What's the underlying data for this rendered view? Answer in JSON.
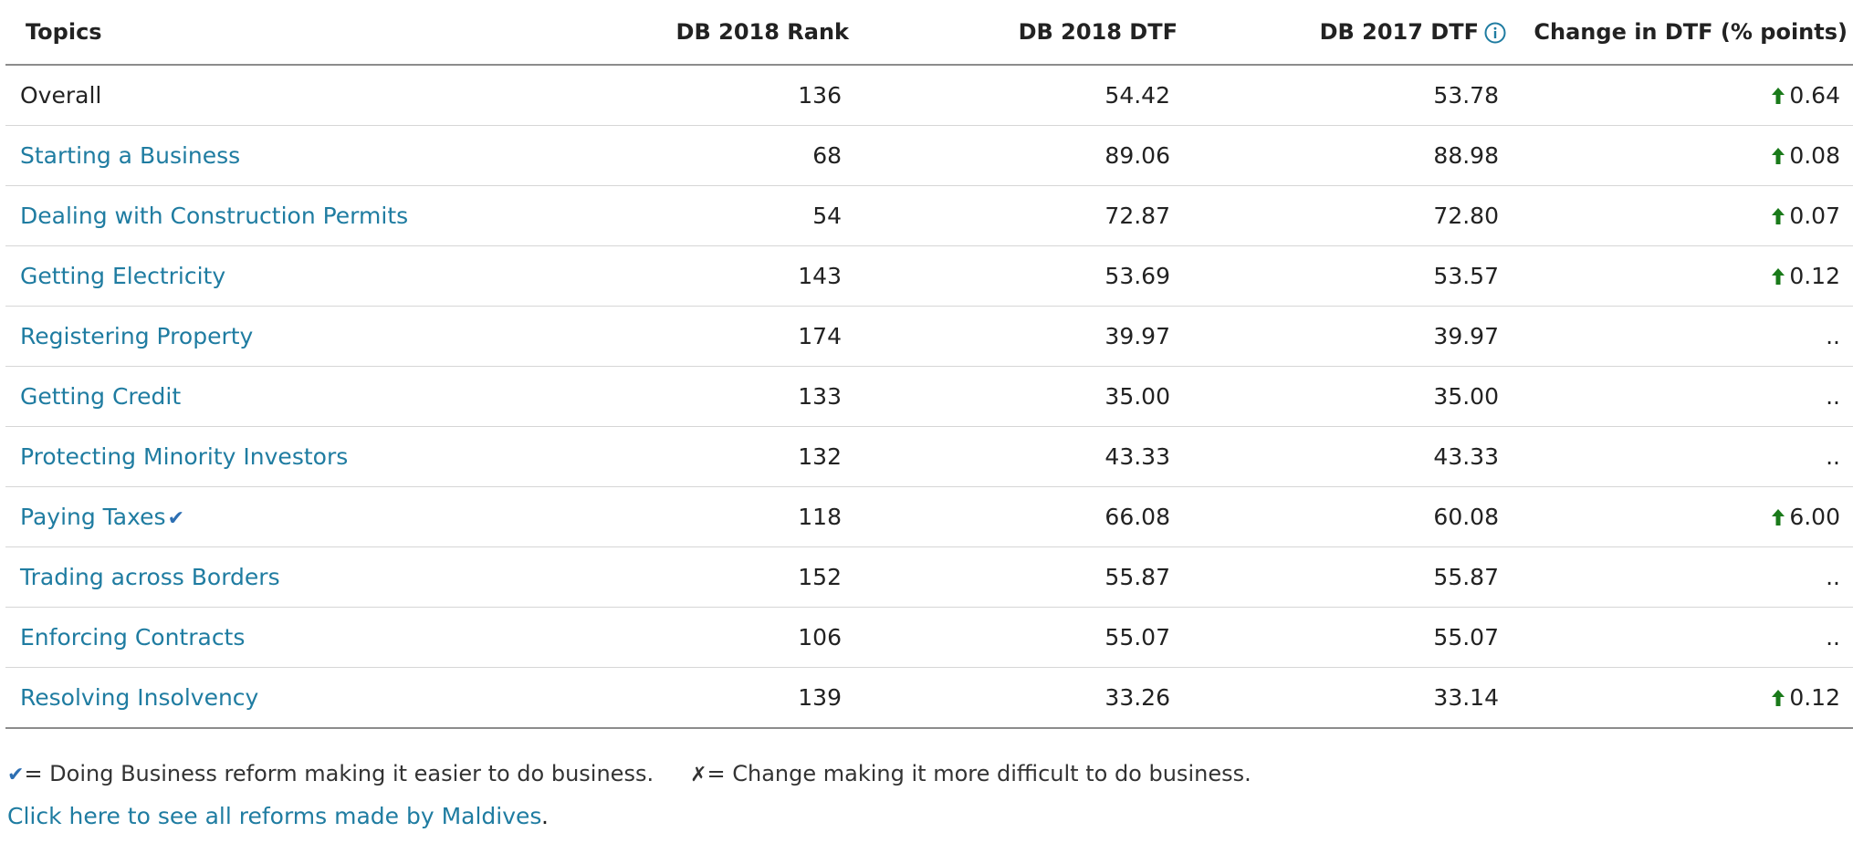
{
  "table": {
    "headers": {
      "topics": "Topics",
      "rank": "DB 2018 Rank",
      "dtf2018": "DB 2018 DTF",
      "dtf2017": "DB 2017 DTF",
      "change": "Change in DTF (% points)"
    },
    "rows": [
      {
        "topic": "Overall",
        "rank": "136",
        "dtf2018": "54.42",
        "dtf2017": "53.78",
        "change": "0.64"
      },
      {
        "topic": "Starting a Business",
        "rank": "68",
        "dtf2018": "89.06",
        "dtf2017": "88.98",
        "change": "0.08"
      },
      {
        "topic": "Dealing with Construction Permits",
        "rank": "54",
        "dtf2018": "72.87",
        "dtf2017": "72.80",
        "change": "0.07"
      },
      {
        "topic": "Getting Electricity",
        "rank": "143",
        "dtf2018": "53.69",
        "dtf2017": "53.57",
        "change": "0.12"
      },
      {
        "topic": "Registering Property",
        "rank": "174",
        "dtf2018": "39.97",
        "dtf2017": "39.97",
        "change": ".."
      },
      {
        "topic": "Getting Credit",
        "rank": "133",
        "dtf2018": "35.00",
        "dtf2017": "35.00",
        "change": ".."
      },
      {
        "topic": "Protecting Minority Investors",
        "rank": "132",
        "dtf2018": "43.33",
        "dtf2017": "43.33",
        "change": ".."
      },
      {
        "topic": "Paying Taxes",
        "rank": "118",
        "dtf2018": "66.08",
        "dtf2017": "60.08",
        "change": "6.00"
      },
      {
        "topic": "Trading across Borders",
        "rank": "152",
        "dtf2018": "55.87",
        "dtf2017": "55.87",
        "change": ".."
      },
      {
        "topic": "Enforcing Contracts",
        "rank": "106",
        "dtf2018": "55.07",
        "dtf2017": "55.07",
        "change": ".."
      },
      {
        "topic": "Resolving Insolvency",
        "rank": "139",
        "dtf2018": "33.26",
        "dtf2017": "33.14",
        "change": "0.12"
      }
    ]
  },
  "legend": {
    "check_symbol": "✔",
    "check_text": "= Doing Business reform making it easier to do business.",
    "x_symbol": "✗",
    "x_text": "= Change making it more difficult to do business."
  },
  "footer": {
    "reforms_link": "Click here to see all reforms made by Maldives",
    "period": "."
  },
  "colors": {
    "link": "#1f7ca1",
    "up_arrow": "#1a7a1a",
    "check": "#2d6fb3"
  }
}
